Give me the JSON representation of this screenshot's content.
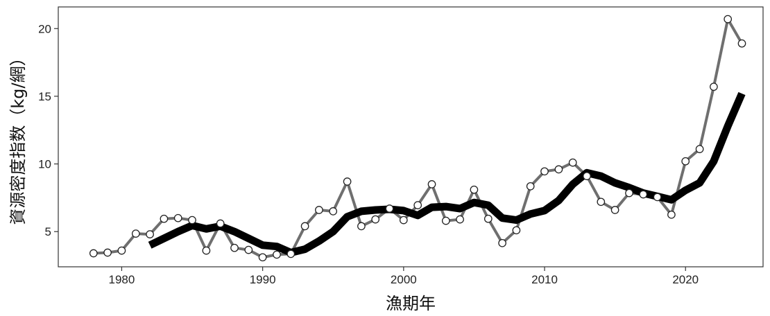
{
  "chart_data": {
    "type": "line",
    "xlabel": "漁期年",
    "ylabel": "資源密度指数（kg/網）",
    "xlim": [
      1975.5,
      2025.5
    ],
    "ylim": [
      2.4,
      21.6
    ],
    "xticks": [
      1980,
      1990,
      2000,
      2010,
      2020
    ],
    "yticks": [
      5,
      10,
      15,
      20
    ],
    "grid": false,
    "legend": "none",
    "series": [
      {
        "style": "line-with-open-circles",
        "color": "#6f6f6f",
        "x": [
          1978,
          1979,
          1980,
          1981,
          1982,
          1983,
          1984,
          1985,
          1986,
          1987,
          1988,
          1989,
          1990,
          1991,
          1992,
          1993,
          1994,
          1995,
          1996,
          1997,
          1998,
          1999,
          2000,
          2001,
          2002,
          2003,
          2004,
          2005,
          2006,
          2007,
          2008,
          2009,
          2010,
          2011,
          2012,
          2013,
          2014,
          2015,
          2016,
          2017,
          2018,
          2019,
          2020,
          2021,
          2022,
          2023,
          2024
        ],
        "y": [
          3.4,
          3.45,
          3.6,
          4.85,
          4.8,
          5.95,
          6.0,
          5.85,
          3.6,
          5.6,
          3.8,
          3.65,
          3.1,
          3.3,
          3.35,
          5.4,
          6.6,
          6.5,
          8.7,
          5.4,
          5.9,
          6.7,
          5.85,
          6.95,
          8.5,
          5.8,
          5.9,
          8.1,
          5.95,
          4.15,
          5.1,
          8.35,
          9.45,
          9.6,
          10.1,
          9.1,
          7.2,
          6.6,
          7.85,
          7.75,
          7.55,
          6.25,
          10.2,
          11.1,
          15.7,
          20.7,
          18.9
        ]
      },
      {
        "style": "thick-line",
        "color": "#000000",
        "x": [
          1982,
          1983,
          1984,
          1985,
          1986,
          1987,
          1988,
          1989,
          1990,
          1991,
          1992,
          1993,
          1994,
          1995,
          1996,
          1997,
          1998,
          1999,
          2000,
          2001,
          2002,
          2003,
          2004,
          2005,
          2006,
          2007,
          2008,
          2009,
          2010,
          2011,
          2012,
          2013,
          2014,
          2015,
          2016,
          2017,
          2018,
          2019,
          2020,
          2021,
          2022,
          2023,
          2024
        ],
        "y": [
          4.0,
          4.5,
          5.0,
          5.45,
          5.2,
          5.4,
          5.0,
          4.5,
          4.0,
          3.9,
          3.45,
          3.7,
          4.3,
          5.0,
          6.1,
          6.5,
          6.6,
          6.65,
          6.55,
          6.2,
          6.8,
          6.85,
          6.7,
          7.15,
          6.95,
          6.0,
          5.85,
          6.3,
          6.55,
          7.3,
          8.5,
          9.35,
          9.1,
          8.6,
          8.25,
          7.85,
          7.6,
          7.35,
          8.05,
          8.6,
          10.2,
          12.8,
          15.2
        ]
      }
    ]
  }
}
